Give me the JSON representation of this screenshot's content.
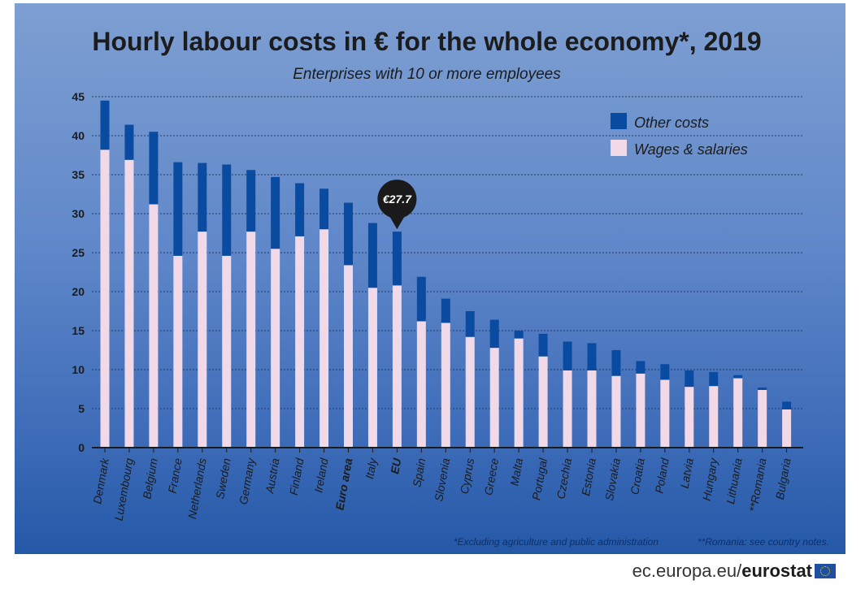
{
  "chart_data": {
    "type": "bar",
    "stacked": true,
    "title": "Hourly labour costs in € for the whole economy*, 2019",
    "subtitle": "Enterprises with 10 or more employees",
    "categories": [
      "Denmark",
      "Luxembourg",
      "Belgium",
      "France",
      "Netherlands",
      "Sweden",
      "Germany",
      "Austria",
      "Finland",
      "Ireland",
      "Euro area",
      "Italy",
      "EU",
      "Spain",
      "Slovenia",
      "Cyprus",
      "Greece",
      "Malta",
      "Portugal",
      "Czechia",
      "Estonia",
      "Slovakia",
      "Croatia",
      "Poland",
      "Latvia",
      "Hungary",
      "Lithuania",
      "**Romania",
      "Bulgaria"
    ],
    "bold_categories": [
      "Euro area",
      "EU"
    ],
    "series": [
      {
        "name": "Wages & salaries",
        "color": "#f1d9e8",
        "values": [
          38.2,
          36.9,
          31.2,
          24.6,
          27.7,
          24.6,
          27.7,
          25.5,
          27.1,
          28.0,
          23.4,
          20.5,
          20.8,
          16.2,
          16.0,
          14.2,
          12.8,
          14.0,
          11.7,
          9.9,
          9.9,
          9.2,
          9.5,
          8.7,
          7.8,
          7.9,
          8.9,
          7.4,
          4.9
        ]
      },
      {
        "name": "Other costs",
        "color": "#0a4ba2",
        "values": [
          6.3,
          4.5,
          9.3,
          12.0,
          8.8,
          11.7,
          7.9,
          9.2,
          6.8,
          5.2,
          8.0,
          8.3,
          6.9,
          5.7,
          3.1,
          3.3,
          3.6,
          1.0,
          2.9,
          3.7,
          3.5,
          3.3,
          1.6,
          2.0,
          2.1,
          1.8,
          0.4,
          0.3,
          1.0
        ]
      }
    ],
    "totals": [
      44.5,
      41.4,
      40.5,
      36.6,
      36.5,
      36.3,
      35.6,
      34.7,
      33.9,
      33.2,
      31.4,
      28.8,
      27.7,
      21.9,
      19.1,
      17.5,
      16.4,
      15.0,
      14.6,
      13.6,
      13.4,
      12.5,
      11.1,
      10.7,
      9.9,
      9.7,
      9.3,
      7.7,
      5.9
    ],
    "ylim": [
      0,
      45
    ],
    "yticks": [
      "0",
      "5",
      "10",
      "15",
      "20",
      "25",
      "30",
      "35",
      "40",
      "45"
    ],
    "ytick_values": [
      0,
      5,
      10,
      15,
      20,
      25,
      30,
      35,
      40,
      45
    ],
    "grid": true,
    "legend": {
      "position": "top-right",
      "entries": [
        "Other costs",
        "Wages & salaries"
      ]
    },
    "annotations": [
      {
        "category": "EU",
        "value": 27.7,
        "text": "€27.7"
      }
    ],
    "footnotes": [
      "*Excluding agriculture and public administration",
      "**Romania: see country notes."
    ]
  },
  "source": {
    "prefix": "ec.europa.eu/",
    "brand": "eurostat"
  },
  "colors": {
    "grid": "#1d2d55",
    "axis": "#1c1c1c",
    "callout": "#1a1a1a"
  }
}
